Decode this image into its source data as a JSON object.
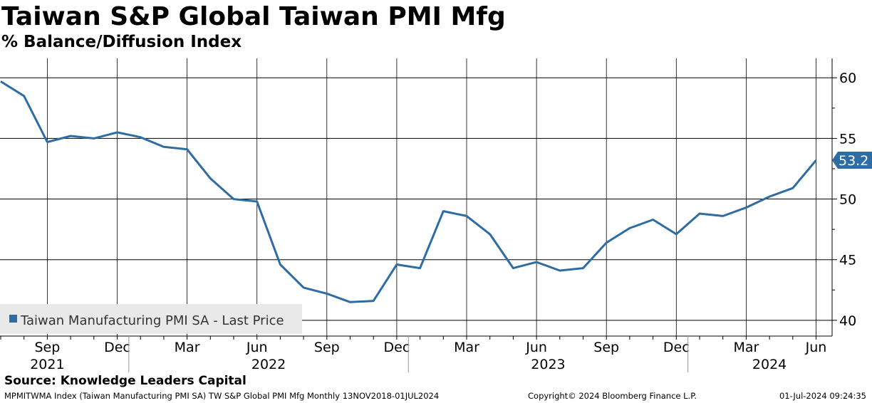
{
  "header": {
    "title": "Taiwan S&P Global Taiwan PMI Mfg",
    "subtitle": "% Balance/Diffusion Index"
  },
  "footer": {
    "source": "Source: Knowledge Leaders Capital",
    "ticker_info": "MPMITWMA Index (Taiwan Manufacturing PMI SA) TW S&P Global PMI Mfg  Monthly 13NOV2018-01JUL2024",
    "copyright": "Copyright© 2024 Bloomberg Finance L.P.",
    "timestamp": "01-Jul-2024 09:24:35"
  },
  "chart_data": {
    "type": "line",
    "title": "Taiwan S&P Global Taiwan PMI Mfg",
    "subtitle": "% Balance/Diffusion Index",
    "ylim": [
      38.7,
      61.6
    ],
    "y_ticks": [
      40,
      45,
      50,
      55,
      60
    ],
    "y_tick_labels": [
      "40",
      "45",
      "50",
      "55",
      "60"
    ],
    "x_tick_labels": [
      "Sep",
      "Dec",
      "Mar",
      "Jun",
      "Sep",
      "Dec",
      "Mar",
      "Jun",
      "Sep",
      "Dec",
      "Mar",
      "Jun"
    ],
    "year_labels": [
      "2021",
      "2022",
      "2023",
      "2024"
    ],
    "last_value_label": "53.2",
    "grid": true,
    "legend_position": "bottom-left",
    "colors": {
      "line": "#2e6ca4",
      "tag": "#2e6ca4",
      "tag_text": "#ffffff"
    },
    "series": [
      {
        "name": "Taiwan Manufacturing PMI SA - Last Price",
        "x": [
          "2021-07",
          "2021-08",
          "2021-09",
          "2021-10",
          "2021-11",
          "2021-12",
          "2022-01",
          "2022-02",
          "2022-03",
          "2022-04",
          "2022-05",
          "2022-06",
          "2022-07",
          "2022-08",
          "2022-09",
          "2022-10",
          "2022-11",
          "2022-12",
          "2023-01",
          "2023-02",
          "2023-03",
          "2023-04",
          "2023-05",
          "2023-06",
          "2023-07",
          "2023-08",
          "2023-09",
          "2023-10",
          "2023-11",
          "2023-12",
          "2024-01",
          "2024-02",
          "2024-03",
          "2024-04",
          "2024-05",
          "2024-06"
        ],
        "values": [
          59.7,
          58.5,
          54.7,
          55.2,
          55.0,
          55.5,
          55.1,
          54.3,
          54.1,
          51.7,
          50.0,
          49.8,
          44.6,
          42.7,
          42.2,
          41.5,
          41.6,
          44.6,
          44.3,
          49.0,
          48.6,
          47.1,
          44.3,
          44.8,
          44.1,
          44.3,
          46.4,
          47.6,
          48.3,
          47.1,
          48.8,
          48.6,
          49.3,
          50.2,
          50.9,
          53.2
        ]
      }
    ]
  }
}
